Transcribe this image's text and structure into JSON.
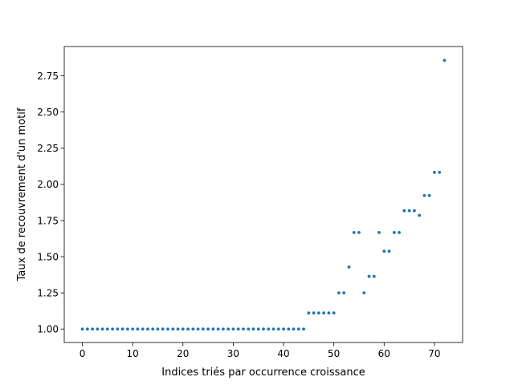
{
  "chart_data": {
    "type": "scatter",
    "title": "",
    "xlabel": "Indices triés par occurrence croissance",
    "ylabel": "Taux de recouvrement d'un motif",
    "xlim": [
      -3.6,
      75.6
    ],
    "ylim": [
      0.907,
      2.953
    ],
    "grid": false,
    "legend": "none",
    "point_color": "#1f77b4",
    "x_ticks": [
      {
        "value": 0,
        "label": "0"
      },
      {
        "value": 10,
        "label": "10"
      },
      {
        "value": 20,
        "label": "20"
      },
      {
        "value": 30,
        "label": "30"
      },
      {
        "value": 40,
        "label": "40"
      },
      {
        "value": 50,
        "label": "50"
      },
      {
        "value": 60,
        "label": "60"
      },
      {
        "value": 70,
        "label": "70"
      }
    ],
    "y_ticks": [
      {
        "value": 1.0,
        "label": "1.00"
      },
      {
        "value": 1.25,
        "label": "1.25"
      },
      {
        "value": 1.5,
        "label": "1.50"
      },
      {
        "value": 1.75,
        "label": "1.75"
      },
      {
        "value": 2.0,
        "label": "2.00"
      },
      {
        "value": 2.25,
        "label": "2.25"
      },
      {
        "value": 2.5,
        "label": "2.50"
      },
      {
        "value": 2.75,
        "label": "2.75"
      }
    ],
    "points": [
      {
        "x": 0,
        "y": 1.0
      },
      {
        "x": 1,
        "y": 1.0
      },
      {
        "x": 2,
        "y": 1.0
      },
      {
        "x": 3,
        "y": 1.0
      },
      {
        "x": 4,
        "y": 1.0
      },
      {
        "x": 5,
        "y": 1.0
      },
      {
        "x": 6,
        "y": 1.0
      },
      {
        "x": 7,
        "y": 1.0
      },
      {
        "x": 8,
        "y": 1.0
      },
      {
        "x": 9,
        "y": 1.0
      },
      {
        "x": 10,
        "y": 1.0
      },
      {
        "x": 11,
        "y": 1.0
      },
      {
        "x": 12,
        "y": 1.0
      },
      {
        "x": 13,
        "y": 1.0
      },
      {
        "x": 14,
        "y": 1.0
      },
      {
        "x": 15,
        "y": 1.0
      },
      {
        "x": 16,
        "y": 1.0
      },
      {
        "x": 17,
        "y": 1.0
      },
      {
        "x": 18,
        "y": 1.0
      },
      {
        "x": 19,
        "y": 1.0
      },
      {
        "x": 20,
        "y": 1.0
      },
      {
        "x": 21,
        "y": 1.0
      },
      {
        "x": 22,
        "y": 1.0
      },
      {
        "x": 23,
        "y": 1.0
      },
      {
        "x": 24,
        "y": 1.0
      },
      {
        "x": 25,
        "y": 1.0
      },
      {
        "x": 26,
        "y": 1.0
      },
      {
        "x": 27,
        "y": 1.0
      },
      {
        "x": 28,
        "y": 1.0
      },
      {
        "x": 29,
        "y": 1.0
      },
      {
        "x": 30,
        "y": 1.0
      },
      {
        "x": 31,
        "y": 1.0
      },
      {
        "x": 32,
        "y": 1.0
      },
      {
        "x": 33,
        "y": 1.0
      },
      {
        "x": 34,
        "y": 1.0
      },
      {
        "x": 35,
        "y": 1.0
      },
      {
        "x": 36,
        "y": 1.0
      },
      {
        "x": 37,
        "y": 1.0
      },
      {
        "x": 38,
        "y": 1.0
      },
      {
        "x": 39,
        "y": 1.0
      },
      {
        "x": 40,
        "y": 1.0
      },
      {
        "x": 41,
        "y": 1.0
      },
      {
        "x": 42,
        "y": 1.0
      },
      {
        "x": 43,
        "y": 1.0
      },
      {
        "x": 44,
        "y": 1.0
      },
      {
        "x": 45,
        "y": 1.111
      },
      {
        "x": 46,
        "y": 1.111
      },
      {
        "x": 47,
        "y": 1.111
      },
      {
        "x": 48,
        "y": 1.111
      },
      {
        "x": 49,
        "y": 1.111
      },
      {
        "x": 50,
        "y": 1.111
      },
      {
        "x": 51,
        "y": 1.25
      },
      {
        "x": 52,
        "y": 1.25
      },
      {
        "x": 53,
        "y": 1.429
      },
      {
        "x": 54,
        "y": 1.667
      },
      {
        "x": 55,
        "y": 1.667
      },
      {
        "x": 56,
        "y": 1.25
      },
      {
        "x": 57,
        "y": 1.364
      },
      {
        "x": 58,
        "y": 1.364
      },
      {
        "x": 59,
        "y": 1.667
      },
      {
        "x": 60,
        "y": 1.538
      },
      {
        "x": 61,
        "y": 1.538
      },
      {
        "x": 62,
        "y": 1.667
      },
      {
        "x": 63,
        "y": 1.667
      },
      {
        "x": 64,
        "y": 1.818
      },
      {
        "x": 65,
        "y": 1.818
      },
      {
        "x": 66,
        "y": 1.818
      },
      {
        "x": 67,
        "y": 1.786
      },
      {
        "x": 68,
        "y": 1.923
      },
      {
        "x": 69,
        "y": 1.923
      },
      {
        "x": 70,
        "y": 2.083
      },
      {
        "x": 71,
        "y": 2.083
      },
      {
        "x": 72,
        "y": 2.857
      }
    ]
  }
}
